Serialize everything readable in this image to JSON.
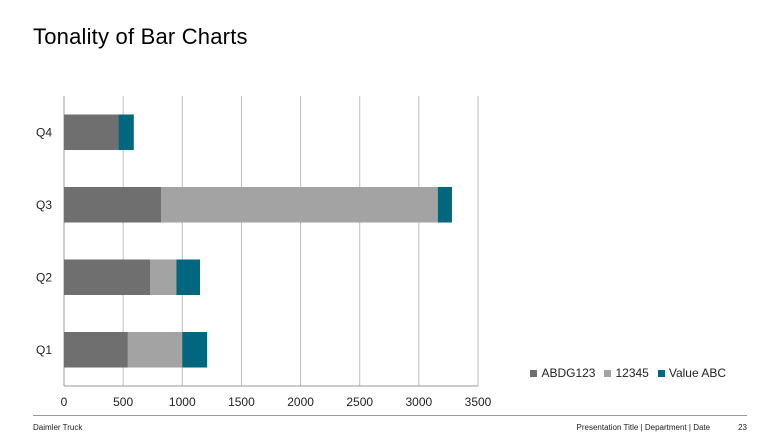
{
  "slide": {
    "title": "Tonality of Bar Charts"
  },
  "footer": {
    "company": "Daimler Truck",
    "meta": "Presentation Title | Department | Date",
    "page": "23"
  },
  "chart_data": {
    "type": "bar",
    "orientation": "horizontal",
    "stacked": true,
    "categories": [
      "Q1",
      "Q2",
      "Q3",
      "Q4"
    ],
    "series": [
      {
        "name": "ABDG123",
        "values": [
          540,
          730,
          820,
          460
        ],
        "color": "#6f6f6f"
      },
      {
        "name": "12345",
        "values": [
          460,
          220,
          2340,
          0
        ],
        "color": "#a3a3a3"
      },
      {
        "name": "Value ABC",
        "values": [
          210,
          200,
          120,
          130
        ],
        "color": "#00677f"
      }
    ],
    "xlim": [
      0,
      3500
    ],
    "xticks": [
      0,
      500,
      1000,
      1500,
      2000,
      2500,
      3000,
      3500
    ],
    "grid": "vertical",
    "legend_position": "bottom-right"
  }
}
